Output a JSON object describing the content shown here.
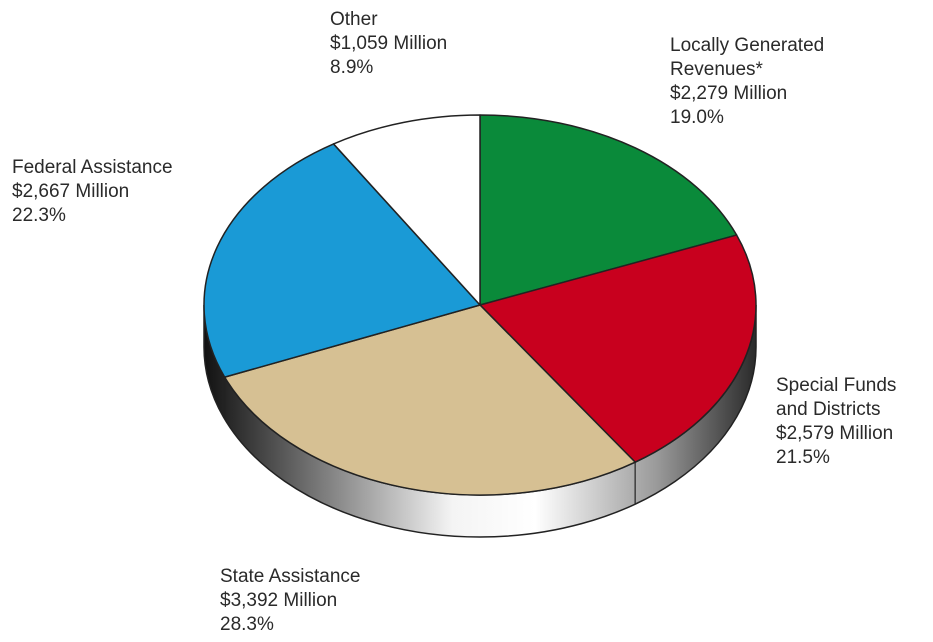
{
  "chart_data": {
    "type": "pie",
    "style": "3d",
    "colors": {
      "locally_generated": "#0a8a3a",
      "special_funds": "#c8001e",
      "state_assistance": "#d6c093",
      "federal_assistance": "#1a9ad6",
      "other": "#ffffff",
      "edge": "#222222"
    },
    "slices": [
      {
        "key": "locally_generated",
        "name": "Locally Generated",
        "name2": "Revenues*",
        "amount": "$2,279 Million",
        "value": 19.0,
        "percent": "19.0%"
      },
      {
        "key": "special_funds",
        "name": "Special Funds",
        "name2": "and Districts",
        "amount": "$2,579 Million",
        "value": 21.5,
        "percent": "21.5%"
      },
      {
        "key": "state_assistance",
        "name": "State Assistance",
        "name2": "",
        "amount": "$3,392 Million",
        "value": 28.3,
        "percent": "28.3%"
      },
      {
        "key": "federal_assistance",
        "name": "Federal Assistance",
        "name2": "",
        "amount": "$2,667 Million",
        "value": 22.3,
        "percent": "22.3%"
      },
      {
        "key": "other",
        "name": "Other",
        "name2": "",
        "amount": "$1,059 Million",
        "value": 8.9,
        "percent": "8.9%"
      }
    ]
  }
}
